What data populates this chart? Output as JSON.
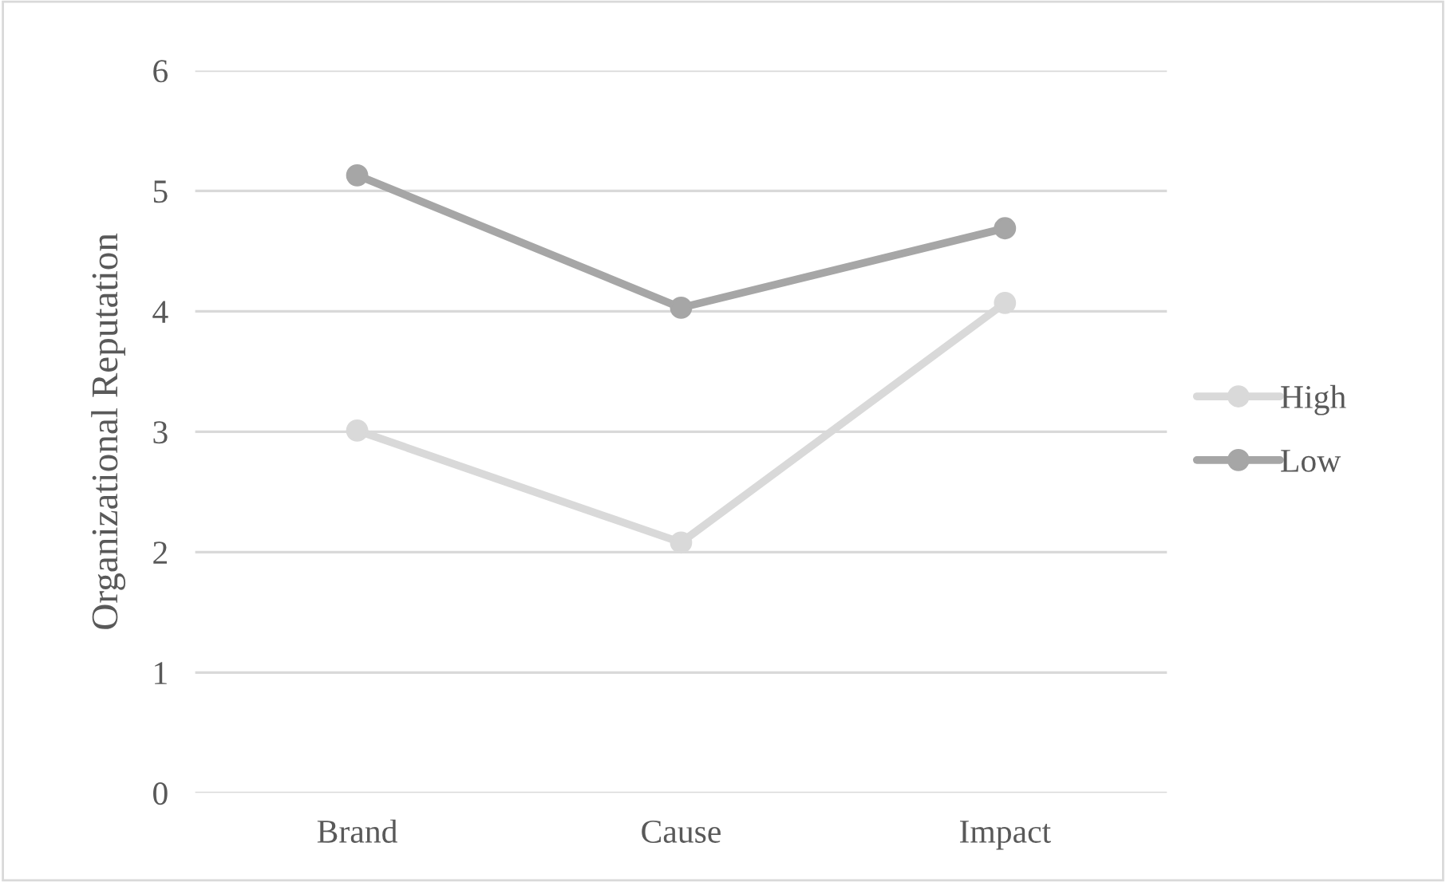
{
  "chart_data": {
    "type": "line",
    "ylabel": "Organizational Reputation",
    "categories": [
      "Brand",
      "Cause",
      "Impact"
    ],
    "series": [
      {
        "name": "High",
        "color": "#d9d9d9",
        "values": [
          3.01,
          2.08,
          4.07
        ]
      },
      {
        "name": "Low",
        "color": "#a6a6a6",
        "values": [
          5.13,
          4.03,
          4.69
        ]
      }
    ],
    "ylim": [
      0,
      6
    ],
    "yticks": [
      0,
      1,
      2,
      3,
      4,
      5,
      6
    ],
    "grid": "y",
    "legend": "right",
    "marker": "circle",
    "line_style": "solid"
  }
}
